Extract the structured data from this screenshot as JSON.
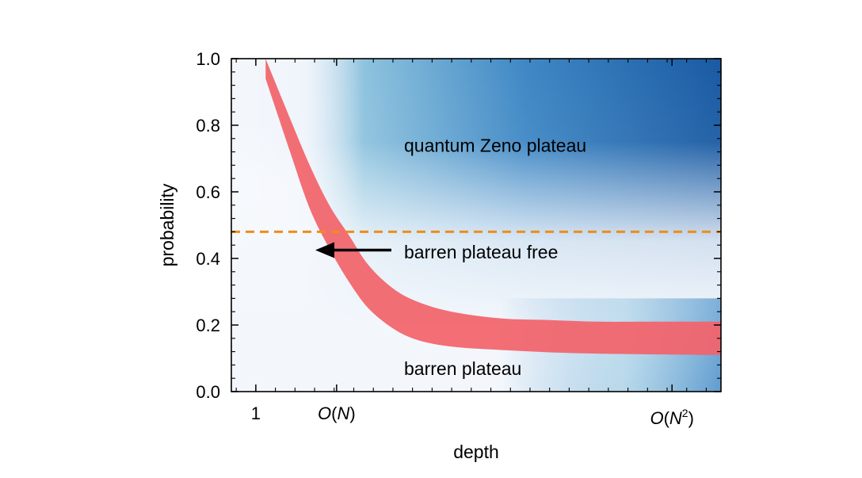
{
  "chart_data": {
    "type": "area",
    "xlabel": "depth",
    "ylabel": "probability",
    "ylim": [
      0,
      1
    ],
    "y_ticks": [
      "0.0",
      "0.2",
      "0.4",
      "0.6",
      "0.8",
      "1.0"
    ],
    "x_ticks": [
      {
        "label": "1"
      },
      {
        "label": "O(N)",
        "base": "O(",
        "var": "N",
        "close": ")"
      },
      {
        "label": "O(N2)",
        "base": "O(",
        "var": "N",
        "exp": "2",
        "close": ")"
      }
    ],
    "grid": false,
    "series": [
      {
        "values": [
          1.0,
          0.82,
          0.68,
          0.56,
          0.47,
          0.38,
          0.31,
          0.27,
          0.24,
          0.22,
          0.215,
          0.21,
          0.21,
          0.21,
          0.21,
          0.21
        ]
      },
      {
        "values": [
          0.94,
          0.72,
          0.55,
          0.43,
          0.33,
          0.25,
          0.19,
          0.155,
          0.135,
          0.125,
          0.118,
          0.114,
          0.112,
          0.111,
          0.11,
          0.11
        ]
      }
    ],
    "x": [
      0.07,
      0.12,
      0.16,
      0.2,
      0.24,
      0.28,
      0.33,
      0.38,
      0.45,
      0.55,
      0.65,
      0.75,
      0.85,
      0.92,
      0.97,
      1.0
    ],
    "threshold": 0.48,
    "annotations": {
      "zeno": "quantum Zeno plateau",
      "free": "barren plateau free",
      "barren": "barren plateau"
    },
    "colors": {
      "band": "#f2636b",
      "threshold": "#ef8c1a",
      "arrow": "#000000",
      "gradient_dark": "#1a5aa3",
      "gradient_mid": "#78b7d8",
      "gradient_light": "#f3f7fc"
    }
  }
}
